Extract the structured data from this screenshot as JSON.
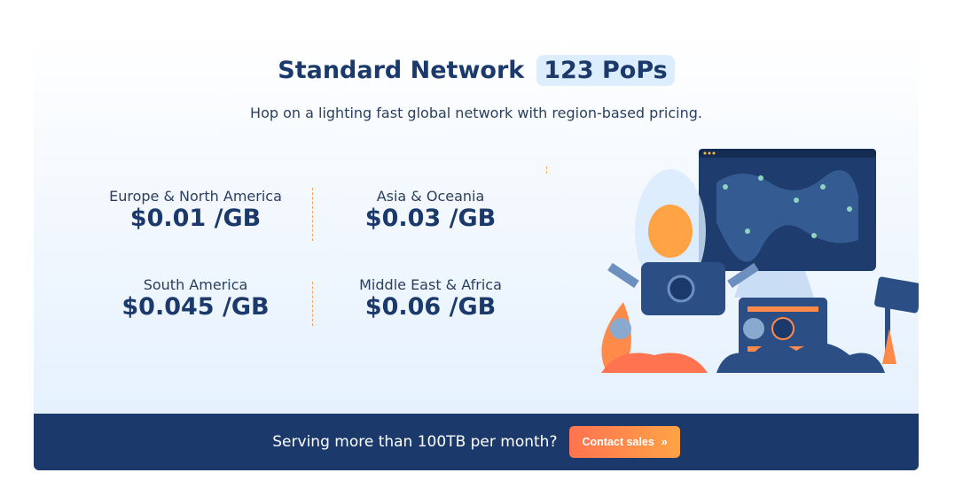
{
  "header": {
    "title": "Standard Network",
    "badge": "123 PoPs",
    "subtitle": "Hop on a lighting fast global network with region-based pricing."
  },
  "regions": [
    {
      "name": "Europe & North America",
      "price": "$0.01 /GB"
    },
    {
      "name": "Asia & Oceania",
      "price": "$0.03 /GB"
    },
    {
      "name": "South America",
      "price": "$0.045 /GB"
    },
    {
      "name": "Middle East & Africa",
      "price": "$0.06 /GB"
    }
  ],
  "footer": {
    "question": "Serving more than 100TB per month?",
    "button": "Contact sales",
    "button_icon": "double-chevron-right-icon"
  },
  "colors": {
    "navy": "#1b3a6b",
    "accent": "#ff8a4a"
  }
}
